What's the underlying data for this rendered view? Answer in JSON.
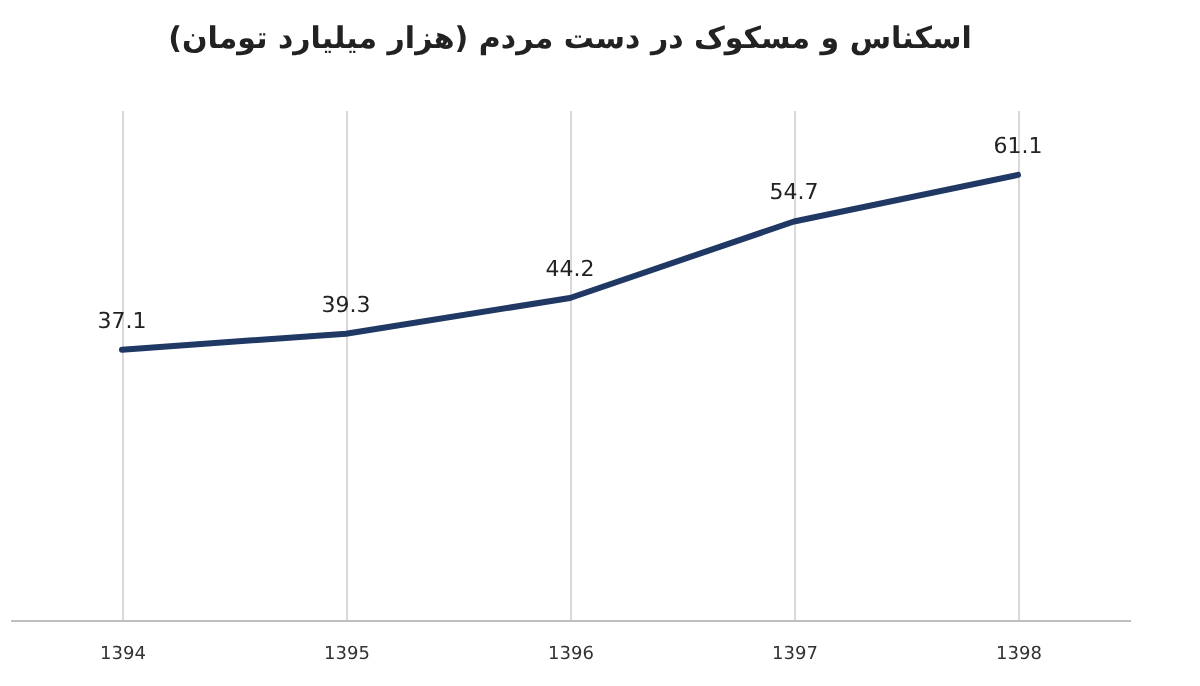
{
  "chart_data": {
    "type": "line",
    "title": "اسکناس و مسکوک در دست مردم (هزار میلیارد تومان)",
    "categories": [
      "1394",
      "1395",
      "1396",
      "1397",
      "1398"
    ],
    "series": [
      {
        "color": "#1f3864",
        "values": [
          37.1,
          39.3,
          44.2,
          54.7,
          61.1
        ]
      }
    ],
    "ylim": [
      0,
      70
    ],
    "tick_labels": "x",
    "grid": "x",
    "data_labels": true
  }
}
